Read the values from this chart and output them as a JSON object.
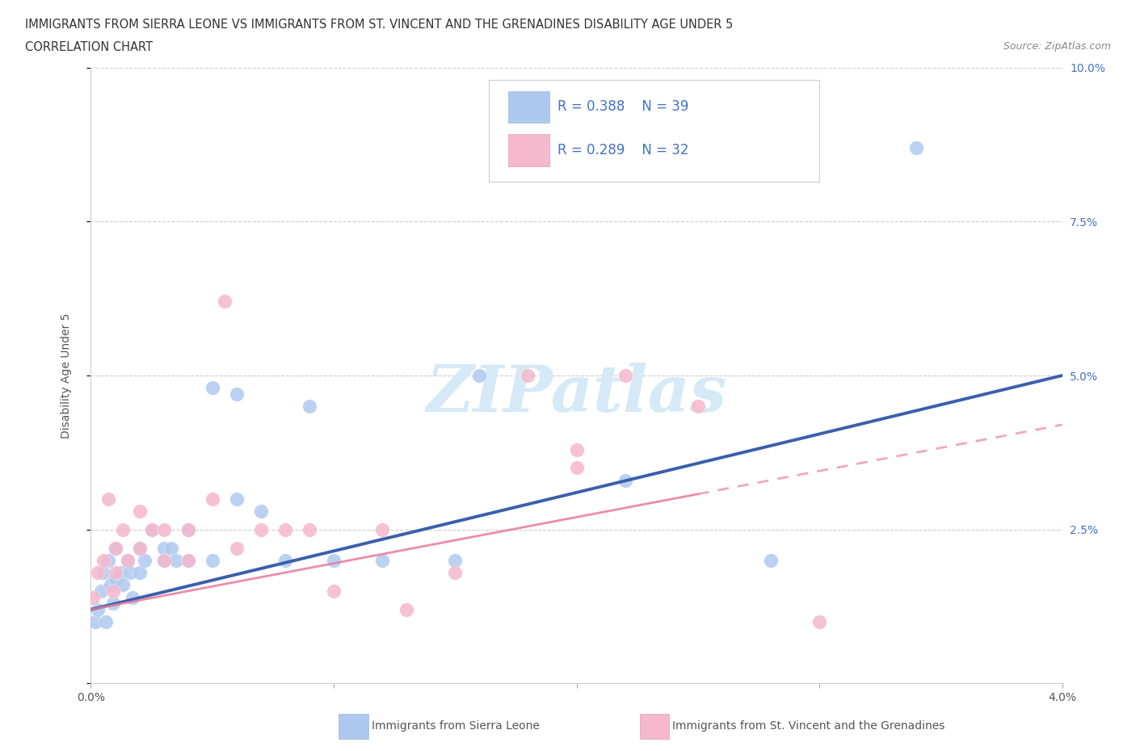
{
  "title_line1": "IMMIGRANTS FROM SIERRA LEONE VS IMMIGRANTS FROM ST. VINCENT AND THE GRENADINES DISABILITY AGE UNDER 5",
  "title_line2": "CORRELATION CHART",
  "source_text": "Source: ZipAtlas.com",
  "ylabel": "Disability Age Under 5",
  "xlim": [
    0.0,
    0.04
  ],
  "ylim": [
    0.0,
    0.1
  ],
  "xticks": [
    0.0,
    0.01,
    0.02,
    0.03,
    0.04
  ],
  "xtick_labels": [
    "0.0%",
    "",
    "",
    "",
    "4.0%"
  ],
  "ytick_labels_right": [
    "",
    "2.5%",
    "5.0%",
    "7.5%",
    "10.0%"
  ],
  "yticks": [
    0.0,
    0.025,
    0.05,
    0.075,
    0.1
  ],
  "r_sierra": 0.388,
  "n_sierra": 39,
  "r_vincent": 0.289,
  "n_vincent": 32,
  "color_sierra": "#aec9ef",
  "color_vincent": "#f5b8cc",
  "line_color_sierra": "#3a5fad",
  "line_color_vincent": "#e8799a",
  "watermark": "ZIPatlas",
  "watermark_color": "#d5e9f7",
  "sierra_x": [
    0.0002,
    0.0003,
    0.0004,
    0.0005,
    0.0006,
    0.0007,
    0.0008,
    0.0009,
    0.001,
    0.001,
    0.0012,
    0.0013,
    0.0015,
    0.0016,
    0.0017,
    0.002,
    0.002,
    0.0022,
    0.0025,
    0.003,
    0.003,
    0.0033,
    0.0035,
    0.004,
    0.004,
    0.005,
    0.005,
    0.006,
    0.006,
    0.007,
    0.008,
    0.009,
    0.01,
    0.012,
    0.015,
    0.016,
    0.022,
    0.034,
    0.028
  ],
  "sierra_y": [
    0.01,
    0.012,
    0.015,
    0.018,
    0.01,
    0.02,
    0.016,
    0.013,
    0.022,
    0.017,
    0.018,
    0.016,
    0.02,
    0.018,
    0.014,
    0.022,
    0.018,
    0.02,
    0.025,
    0.022,
    0.02,
    0.022,
    0.02,
    0.025,
    0.02,
    0.048,
    0.02,
    0.03,
    0.047,
    0.028,
    0.02,
    0.045,
    0.02,
    0.02,
    0.02,
    0.05,
    0.033,
    0.087,
    0.02
  ],
  "vincent_x": [
    0.0001,
    0.0003,
    0.0005,
    0.0007,
    0.0009,
    0.001,
    0.001,
    0.0013,
    0.0015,
    0.002,
    0.002,
    0.0025,
    0.003,
    0.003,
    0.004,
    0.004,
    0.005,
    0.0055,
    0.006,
    0.007,
    0.008,
    0.009,
    0.01,
    0.012,
    0.013,
    0.015,
    0.018,
    0.02,
    0.025,
    0.022,
    0.03,
    0.02
  ],
  "vincent_y": [
    0.014,
    0.018,
    0.02,
    0.03,
    0.015,
    0.022,
    0.018,
    0.025,
    0.02,
    0.028,
    0.022,
    0.025,
    0.025,
    0.02,
    0.025,
    0.02,
    0.03,
    0.062,
    0.022,
    0.025,
    0.025,
    0.025,
    0.015,
    0.025,
    0.012,
    0.018,
    0.05,
    0.038,
    0.045,
    0.05,
    0.01,
    0.035
  ],
  "line_sierra_x0": 0.0,
  "line_sierra_y0": 0.012,
  "line_sierra_x1": 0.04,
  "line_sierra_y1": 0.05,
  "line_vincent_x0": 0.0,
  "line_vincent_y0": 0.012,
  "line_vincent_x1": 0.04,
  "line_vincent_y1": 0.042,
  "line_vincent_solid_end": 0.025
}
